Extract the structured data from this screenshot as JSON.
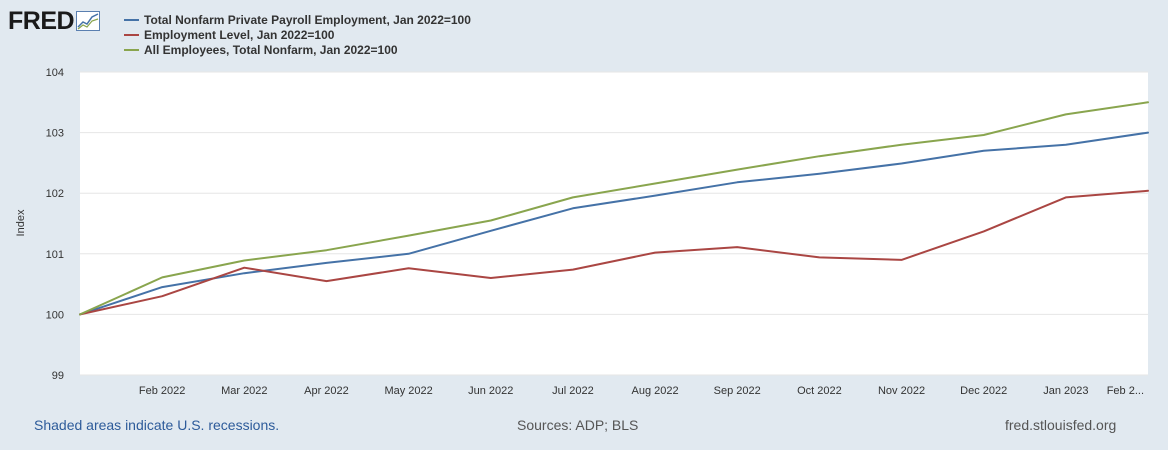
{
  "logo": {
    "text": "FRED",
    "icon": "trend-graph-icon"
  },
  "legend": [
    {
      "label": "Total Nonfarm Private Payroll Employment, Jan 2022=100",
      "color": "#4572a7"
    },
    {
      "label": "Employment Level, Jan 2022=100",
      "color": "#aa4643"
    },
    {
      "label": "All Employees, Total Nonfarm, Jan 2022=100",
      "color": "#89a54e"
    }
  ],
  "footer": {
    "recession_note": "Shaded areas indicate U.S. recessions.",
    "sources": "Sources: ADP; BLS",
    "site": "fred.stlouisfed.org"
  },
  "chart_data": {
    "type": "line",
    "title": "",
    "xlabel": "",
    "ylabel": "Index",
    "ylim": [
      99,
      104
    ],
    "yticks": [
      99,
      100,
      101,
      102,
      103,
      104
    ],
    "x": [
      "Jan 2022",
      "Feb 2022",
      "Mar 2022",
      "Apr 2022",
      "May 2022",
      "Jun 2022",
      "Jul 2022",
      "Aug 2022",
      "Sep 2022",
      "Oct 2022",
      "Nov 2022",
      "Dec 2022",
      "Jan 2023",
      "Feb 2023"
    ],
    "xtick_labels": [
      "Feb 2022",
      "Mar 2022",
      "Apr 2022",
      "May 2022",
      "Jun 2022",
      "Jul 2022",
      "Aug 2022",
      "Sep 2022",
      "Oct 2022",
      "Nov 2022",
      "Dec 2022",
      "Jan 2023",
      "Feb 2..."
    ],
    "series": [
      {
        "name": "Total Nonfarm Private Payroll Employment, Jan 2022=100",
        "color": "#4572a7",
        "values": [
          100,
          100.45,
          100.68,
          100.85,
          101.0,
          101.38,
          101.75,
          101.96,
          102.18,
          102.32,
          102.49,
          102.7,
          102.8,
          103.0
        ]
      },
      {
        "name": "Employment Level, Jan 2022=100",
        "color": "#aa4643",
        "values": [
          100,
          100.3,
          100.77,
          100.55,
          100.76,
          100.6,
          100.74,
          101.02,
          101.11,
          100.94,
          100.9,
          101.37,
          101.93,
          102.04
        ]
      },
      {
        "name": "All Employees, Total Nonfarm, Jan 2022=100",
        "color": "#89a54e",
        "values": [
          100,
          100.61,
          100.89,
          101.06,
          101.3,
          101.55,
          101.93,
          102.16,
          102.39,
          102.61,
          102.8,
          102.96,
          103.3,
          103.5
        ]
      }
    ]
  }
}
